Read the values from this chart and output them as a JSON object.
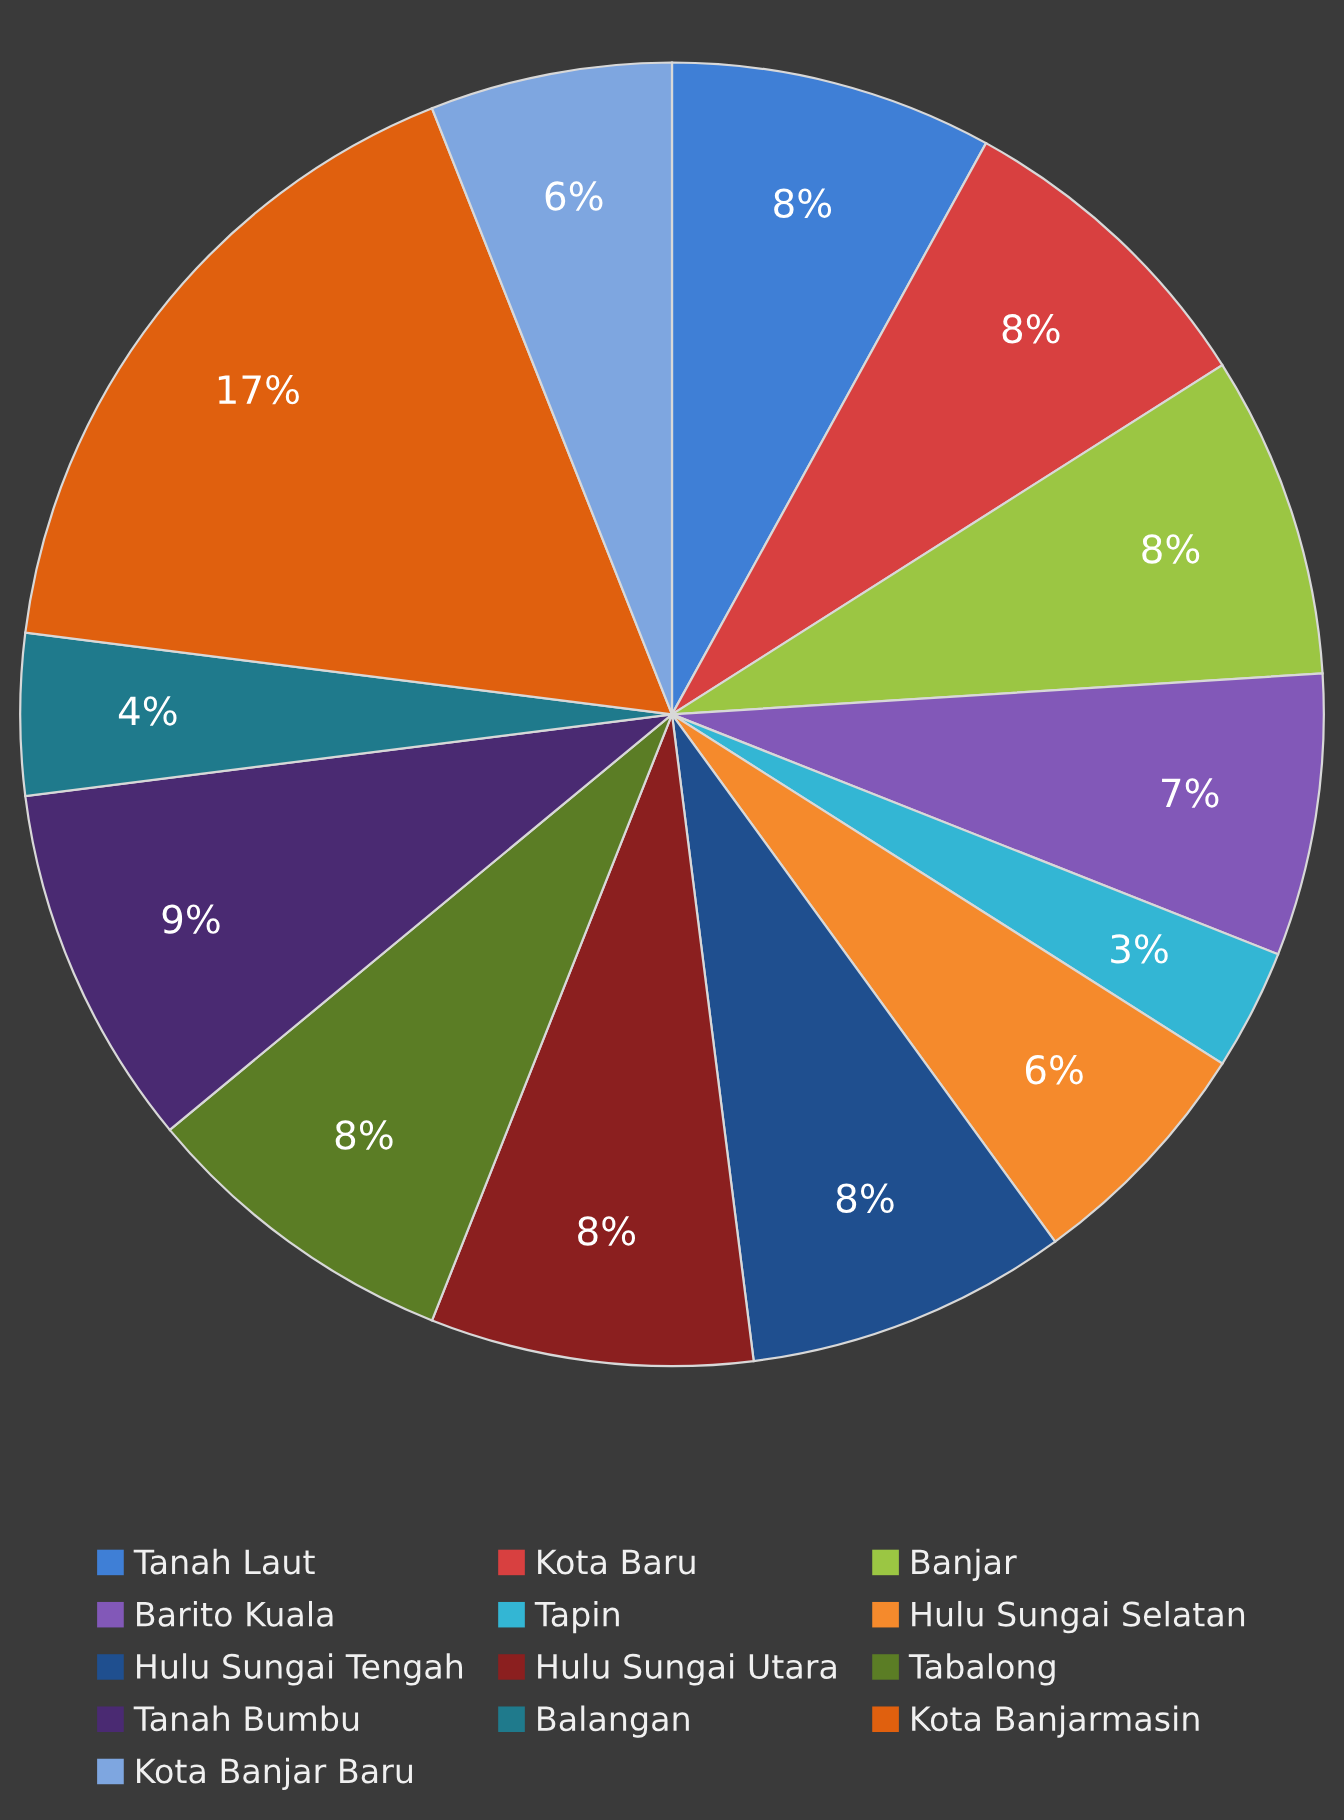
{
  "chart_data": {
    "type": "pie",
    "categories": [
      "Tanah Laut",
      "Kota Baru",
      "Banjar",
      "Barito Kuala",
      "Tapin",
      "Hulu Sungai Selatan",
      "Hulu Sungai Tengah",
      "Hulu Sungai Utara",
      "Tabalong",
      "Tanah Bumbu",
      "Balangan",
      "Kota Banjarmasin",
      "Kota Banjar Baru"
    ],
    "values": [
      8,
      8,
      8,
      7,
      3,
      6,
      8,
      8,
      8,
      9,
      4,
      17,
      6
    ],
    "colors": [
      "#3f7fd6",
      "#d84040",
      "#9bc643",
      "#8258b8",
      "#33b6d4",
      "#f58a2c",
      "#1f4f8f",
      "#8b1f1f",
      "#5b7d25",
      "#4a2a72",
      "#1f7a8c",
      "#e0600e",
      "#7ea6e0"
    ],
    "value_labels": [
      "8%",
      "8%",
      "8%",
      "7%",
      "3%",
      "6%",
      "8%",
      "8%",
      "8%",
      "9%",
      "4%",
      "17%",
      "6%"
    ],
    "legend": "bottom"
  }
}
